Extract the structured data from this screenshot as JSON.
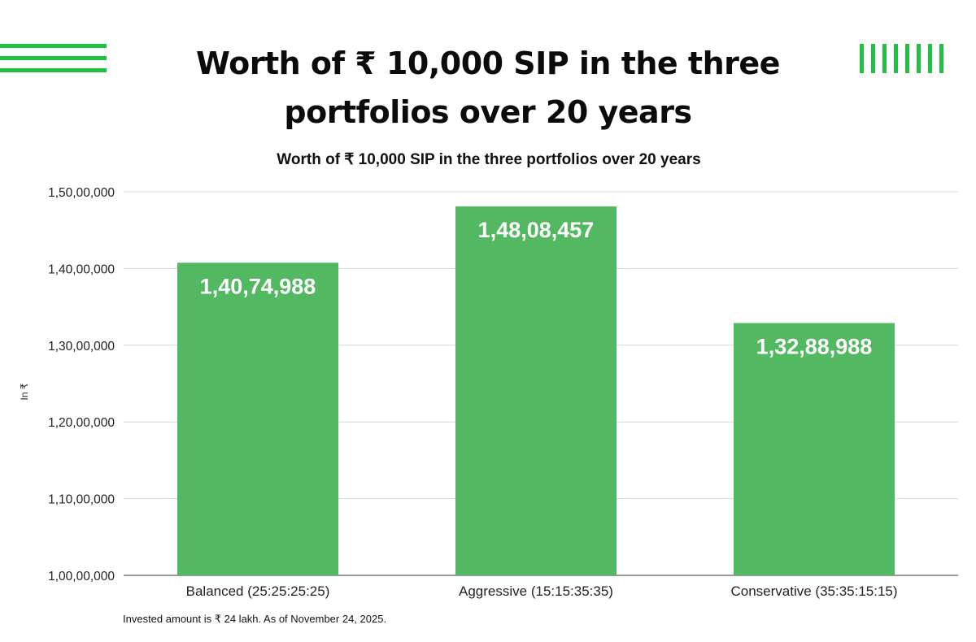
{
  "page": {
    "title": "Worth of ₹ 10,000 SIP in the three portfolios over 20 years",
    "footnote": "Invested amount is ₹ 24 lakh. As of November 24, 2025."
  },
  "colors": {
    "accent": "#1ec140",
    "bar": "#52b862",
    "grid": "#d9d9d9"
  },
  "chart_data": {
    "type": "bar",
    "title": "Worth of ₹ 10,000 SIP in the three portfolios over 20 years",
    "xlabel": "",
    "ylabel": "In ₹",
    "categories": [
      "Balanced (25:25:25:25)",
      "Aggressive (15:15:35:35)",
      "Conservative (35:35:15:15)"
    ],
    "values": [
      14074988,
      14808457,
      13288988
    ],
    "data_labels": [
      "1,40,74,988",
      "1,48,08,457",
      "1,32,88,988"
    ],
    "ylim": [
      10000000,
      15000000
    ],
    "yticks": [
      10000000,
      11000000,
      12000000,
      13000000,
      14000000,
      15000000
    ],
    "ytick_labels": [
      "1,00,00,000",
      "1,10,00,000",
      "1,20,00,000",
      "1,30,00,000",
      "1,40,00,000",
      "1,50,00,000"
    ],
    "grid": true,
    "legend": "none"
  }
}
